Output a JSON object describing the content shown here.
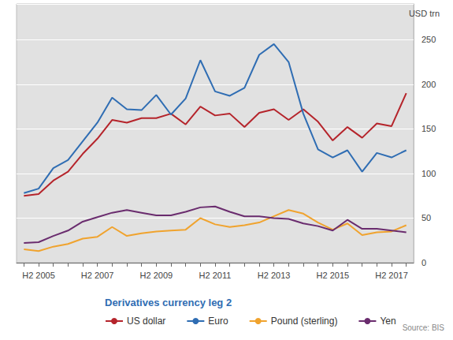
{
  "chart_data": {
    "type": "line",
    "title": "Derivatives currency leg 2",
    "ylabel": "USD trn",
    "source": "Source: BIS",
    "categories": [
      null,
      "H2 2005",
      null,
      null,
      null,
      "H2 2007",
      null,
      null,
      null,
      "H2 2009",
      null,
      null,
      null,
      "H2 2011",
      null,
      null,
      null,
      "H2 2013",
      null,
      null,
      null,
      "H2 2015",
      null,
      null,
      null,
      "H2 2017",
      null
    ],
    "series": [
      {
        "name": "US dollar",
        "color": "#b5242b",
        "values": [
          75,
          77,
          92,
          102,
          122,
          139,
          160,
          157,
          162,
          162,
          167,
          155,
          175,
          165,
          167,
          152,
          168,
          172,
          160,
          172,
          158,
          137,
          152,
          140,
          156,
          153,
          190
        ]
      },
      {
        "name": "Euro",
        "color": "#2f6db3",
        "values": [
          78,
          83,
          106,
          115,
          136,
          157,
          185,
          172,
          171,
          188,
          166,
          184,
          227,
          192,
          187,
          196,
          233,
          245,
          225,
          167,
          127,
          118,
          126,
          102,
          123,
          118,
          126
        ]
      },
      {
        "name": "Pound (sterling)",
        "color": "#f0a32e",
        "values": [
          15,
          13,
          18,
          21,
          27,
          29,
          40,
          30,
          33,
          35,
          36,
          37,
          50,
          43,
          40,
          42,
          45,
          52,
          59,
          55,
          45,
          37,
          44,
          31,
          34,
          35,
          42
        ]
      },
      {
        "name": "Yen",
        "color": "#6a2c6e",
        "values": [
          22,
          23,
          30,
          36,
          46,
          51,
          56,
          59,
          56,
          53,
          53,
          57,
          62,
          63,
          57,
          52,
          52,
          50,
          49,
          44,
          41,
          36,
          48,
          38,
          38,
          36,
          34
        ]
      }
    ],
    "ylim": [
      0,
      290
    ],
    "yticks": [
      0,
      50,
      100,
      150,
      200,
      250
    ],
    "grid": true,
    "legend": "bottom-left"
  }
}
